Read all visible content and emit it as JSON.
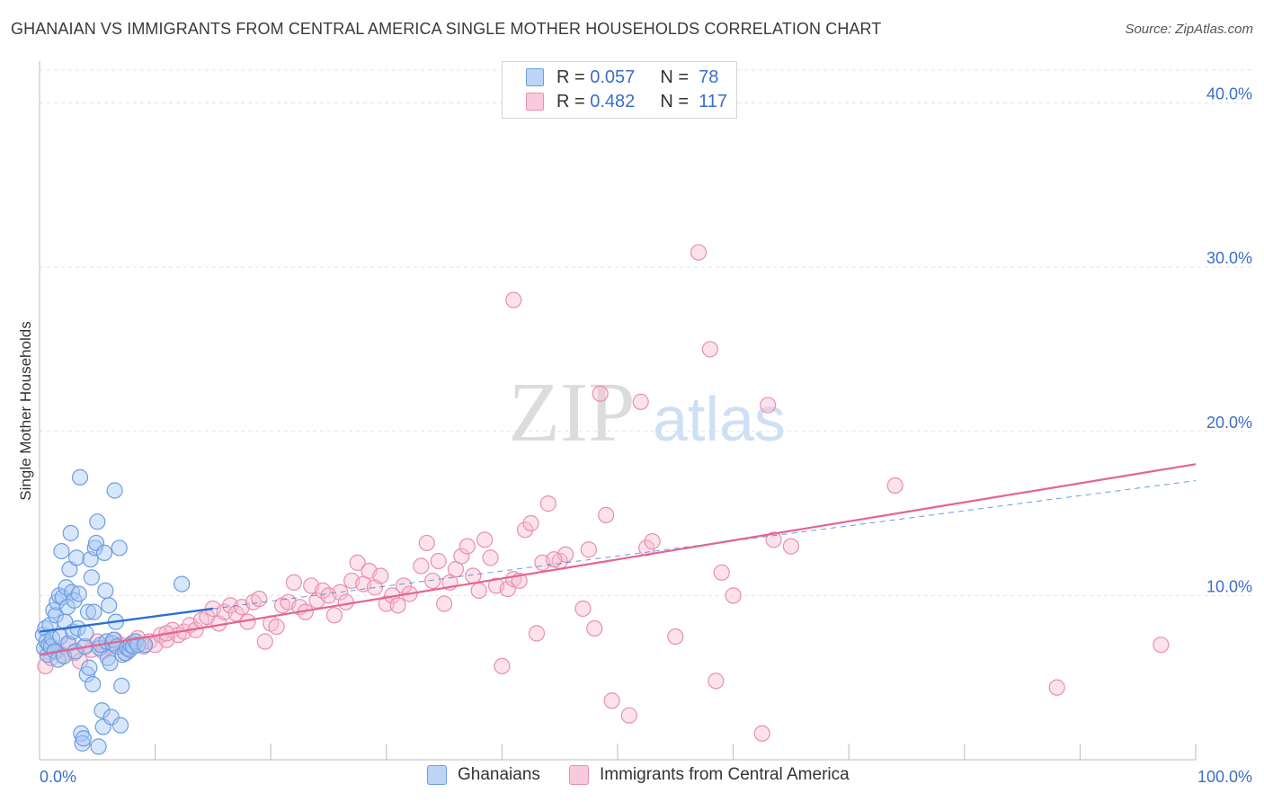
{
  "title": "GHANAIAN VS IMMIGRANTS FROM CENTRAL AMERICA SINGLE MOTHER HOUSEHOLDS CORRELATION CHART",
  "source": "Source: ZipAtlas.com",
  "watermark": {
    "zip": "ZIP",
    "atlas": "atlas"
  },
  "legend_top": [
    {
      "r_label": "R =",
      "r_value": "0.057",
      "n_label": "N =",
      "n_value": "78"
    },
    {
      "r_label": "R =",
      "r_value": "0.482",
      "n_label": "N =",
      "n_value": "117"
    }
  ],
  "legend_bottom": [
    {
      "label": "Ghanaians"
    },
    {
      "label": "Immigrants from Central America"
    }
  ],
  "colors": {
    "blue_fill": "#a9c8f3",
    "blue_stroke": "#6d9de0",
    "blue_line": "#2b6fd1",
    "pink_fill": "#f6bfd2",
    "pink_stroke": "#e98fb0",
    "pink_line": "#e4648f",
    "axis_label": "#3a6fc9",
    "grid": "#e3e3e3"
  },
  "chart_data": {
    "type": "scatter",
    "title": "GHANAIAN VS IMMIGRANTS FROM CENTRAL AMERICA SINGLE MOTHER HOUSEHOLDS CORRELATION CHART",
    "xlabel": "",
    "ylabel": "Single Mother Households",
    "xlim": [
      0,
      100
    ],
    "ylim": [
      0,
      42
    ],
    "x_tick_labels": [
      "0.0%",
      "100.0%"
    ],
    "y_ticks": [
      10,
      20,
      30,
      40
    ],
    "y_tick_labels": [
      "10.0%",
      "20.0%",
      "30.0%",
      "40.0%"
    ],
    "series": [
      {
        "name": "Ghanaians",
        "r": 0.057,
        "n": 78,
        "trend": {
          "x0": 0,
          "y0": 7.8,
          "x1": 15,
          "y1": 9.2,
          "style": "solid"
        },
        "trend_ext": {
          "x0": 15,
          "y0": 9.2,
          "x1": 100,
          "y1": 17.0,
          "style": "dashed"
        },
        "points": [
          [
            0.3,
            7.6
          ],
          [
            0.4,
            6.8
          ],
          [
            0.5,
            8.0
          ],
          [
            0.6,
            7.2
          ],
          [
            0.7,
            6.4
          ],
          [
            0.8,
            7.0
          ],
          [
            0.9,
            8.2
          ],
          [
            1.0,
            6.9
          ],
          [
            1.1,
            7.4
          ],
          [
            1.2,
            9.1
          ],
          [
            1.3,
            6.6
          ],
          [
            1.4,
            8.8
          ],
          [
            1.5,
            9.6
          ],
          [
            1.6,
            6.1
          ],
          [
            1.7,
            10.0
          ],
          [
            1.8,
            7.5
          ],
          [
            1.9,
            12.7
          ],
          [
            2.0,
            9.9
          ],
          [
            2.1,
            6.3
          ],
          [
            2.2,
            8.4
          ],
          [
            2.3,
            10.5
          ],
          [
            2.4,
            9.3
          ],
          [
            2.5,
            7.1
          ],
          [
            2.6,
            11.6
          ],
          [
            2.7,
            13.8
          ],
          [
            2.8,
            10.2
          ],
          [
            2.9,
            7.8
          ],
          [
            3.0,
            9.7
          ],
          [
            3.1,
            6.6
          ],
          [
            3.2,
            12.3
          ],
          [
            3.3,
            8.0
          ],
          [
            3.4,
            10.1
          ],
          [
            3.5,
            17.2
          ],
          [
            3.6,
            1.6
          ],
          [
            3.7,
            1.0
          ],
          [
            3.8,
            1.3
          ],
          [
            3.9,
            6.9
          ],
          [
            4.0,
            7.7
          ],
          [
            4.1,
            5.2
          ],
          [
            4.2,
            9.0
          ],
          [
            4.3,
            5.6
          ],
          [
            4.4,
            12.2
          ],
          [
            4.5,
            11.1
          ],
          [
            4.6,
            4.6
          ],
          [
            4.7,
            9.0
          ],
          [
            4.8,
            12.9
          ],
          [
            4.9,
            13.2
          ],
          [
            5.0,
            14.5
          ],
          [
            5.1,
            0.8
          ],
          [
            5.2,
            6.8
          ],
          [
            5.3,
            7.0
          ],
          [
            5.4,
            3.0
          ],
          [
            5.5,
            2.0
          ],
          [
            5.6,
            12.6
          ],
          [
            5.7,
            10.3
          ],
          [
            5.8,
            7.2
          ],
          [
            5.9,
            6.2
          ],
          [
            6.0,
            9.4
          ],
          [
            6.1,
            5.9
          ],
          [
            6.2,
            2.6
          ],
          [
            6.3,
            7.1
          ],
          [
            6.4,
            7.3
          ],
          [
            6.5,
            16.4
          ],
          [
            6.6,
            8.4
          ],
          [
            6.7,
            6.9
          ],
          [
            6.9,
            12.9
          ],
          [
            7.0,
            2.1
          ],
          [
            7.1,
            4.5
          ],
          [
            7.2,
            6.4
          ],
          [
            7.4,
            6.5
          ],
          [
            7.6,
            6.8
          ],
          [
            7.8,
            6.7
          ],
          [
            7.9,
            7.0
          ],
          [
            8.1,
            6.9
          ],
          [
            8.3,
            7.2
          ],
          [
            8.5,
            7.0
          ],
          [
            9.1,
            7.0
          ],
          [
            12.3,
            10.7
          ]
        ]
      },
      {
        "name": "Immigrants from Central America",
        "r": 0.482,
        "n": 117,
        "trend": {
          "x0": 0,
          "y0": 6.4,
          "x1": 100,
          "y1": 18.0,
          "style": "solid"
        },
        "points": [
          [
            0.5,
            5.7
          ],
          [
            1.0,
            6.2
          ],
          [
            1.5,
            6.6
          ],
          [
            2.0,
            6.4
          ],
          [
            2.5,
            7.0
          ],
          [
            3.0,
            6.5
          ],
          [
            3.5,
            6.0
          ],
          [
            4.0,
            6.9
          ],
          [
            4.5,
            6.7
          ],
          [
            5.0,
            7.2
          ],
          [
            5.5,
            6.6
          ],
          [
            6.0,
            6.9
          ],
          [
            6.5,
            7.3
          ],
          [
            7.0,
            7.0
          ],
          [
            7.5,
            6.5
          ],
          [
            8.0,
            7.1
          ],
          [
            8.5,
            7.4
          ],
          [
            9.0,
            6.9
          ],
          [
            9.5,
            7.2
          ],
          [
            10.0,
            7.0
          ],
          [
            10.5,
            7.6
          ],
          [
            11.0,
            7.3
          ],
          [
            11.5,
            7.9
          ],
          [
            12.0,
            7.6
          ],
          [
            12.5,
            7.8
          ],
          [
            13.0,
            8.2
          ],
          [
            13.5,
            7.9
          ],
          [
            14.0,
            8.5
          ],
          [
            14.5,
            8.7
          ],
          [
            15.0,
            9.2
          ],
          [
            15.5,
            8.3
          ],
          [
            16.0,
            9.0
          ],
          [
            16.5,
            9.4
          ],
          [
            17.0,
            8.9
          ],
          [
            17.5,
            9.3
          ],
          [
            18.0,
            8.4
          ],
          [
            18.5,
            9.6
          ],
          [
            19.0,
            9.8
          ],
          [
            19.5,
            7.2
          ],
          [
            20.0,
            8.3
          ],
          [
            20.5,
            8.1
          ],
          [
            21.0,
            9.4
          ],
          [
            21.5,
            9.6
          ],
          [
            22.0,
            10.8
          ],
          [
            22.5,
            9.3
          ],
          [
            23.0,
            9.0
          ],
          [
            23.5,
            10.6
          ],
          [
            24.0,
            9.7
          ],
          [
            24.5,
            10.3
          ],
          [
            25.0,
            10.0
          ],
          [
            25.5,
            8.8
          ],
          [
            26.0,
            10.2
          ],
          [
            26.5,
            9.6
          ],
          [
            27.0,
            10.9
          ],
          [
            27.5,
            12.0
          ],
          [
            28.0,
            10.7
          ],
          [
            28.5,
            11.5
          ],
          [
            29.0,
            10.5
          ],
          [
            29.5,
            11.2
          ],
          [
            30.0,
            9.5
          ],
          [
            30.5,
            10.0
          ],
          [
            31.0,
            9.4
          ],
          [
            31.5,
            10.6
          ],
          [
            32.0,
            10.1
          ],
          [
            33.0,
            11.8
          ],
          [
            33.5,
            13.2
          ],
          [
            34.0,
            10.9
          ],
          [
            34.5,
            12.1
          ],
          [
            35.0,
            9.5
          ],
          [
            35.5,
            10.8
          ],
          [
            36.0,
            11.6
          ],
          [
            36.5,
            12.4
          ],
          [
            37.0,
            13.0
          ],
          [
            37.5,
            11.2
          ],
          [
            38.0,
            10.3
          ],
          [
            38.5,
            13.4
          ],
          [
            39.0,
            12.3
          ],
          [
            39.5,
            10.6
          ],
          [
            40.0,
            5.7
          ],
          [
            40.5,
            10.4
          ],
          [
            41.0,
            11.0
          ],
          [
            41.5,
            10.9
          ],
          [
            42.0,
            14.0
          ],
          [
            42.5,
            14.4
          ],
          [
            43.0,
            7.7
          ],
          [
            43.5,
            12.0
          ],
          [
            44.0,
            15.6
          ],
          [
            45.0,
            12.1
          ],
          [
            45.5,
            12.5
          ],
          [
            47.0,
            9.2
          ],
          [
            47.5,
            12.8
          ],
          [
            48.0,
            8.0
          ],
          [
            48.5,
            22.3
          ],
          [
            49.0,
            14.9
          ],
          [
            49.5,
            3.6
          ],
          [
            51.0,
            2.7
          ],
          [
            52.0,
            21.8
          ],
          [
            52.5,
            12.9
          ],
          [
            53.0,
            13.3
          ],
          [
            55.0,
            7.5
          ],
          [
            57.0,
            30.9
          ],
          [
            58.0,
            25.0
          ],
          [
            58.5,
            4.8
          ],
          [
            59.0,
            11.4
          ],
          [
            60.0,
            10.0
          ],
          [
            62.5,
            1.6
          ],
          [
            63.0,
            21.6
          ],
          [
            63.5,
            13.4
          ],
          [
            65.0,
            13.0
          ],
          [
            74.0,
            16.7
          ],
          [
            88.0,
            4.4
          ],
          [
            97.0,
            7.0
          ],
          [
            41.0,
            28.0
          ],
          [
            6.0,
            7.0
          ],
          [
            11.0,
            7.7
          ],
          [
            7.5,
            6.8
          ],
          [
            44.5,
            12.2
          ]
        ]
      }
    ]
  }
}
